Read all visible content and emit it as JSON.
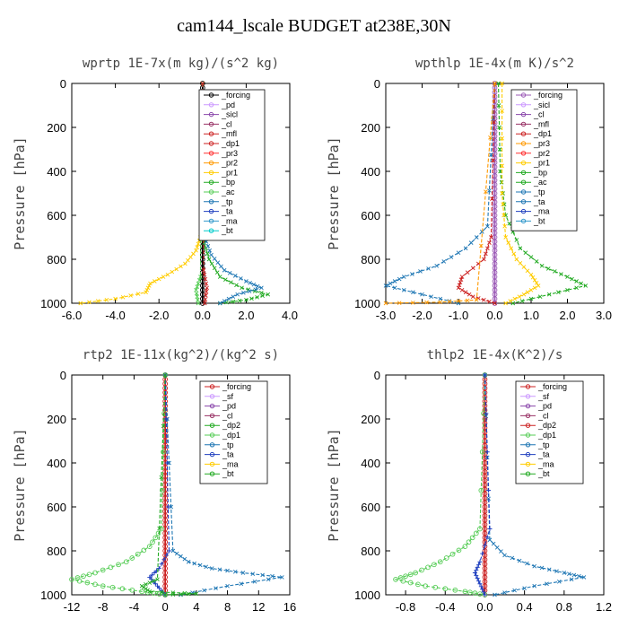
{
  "figure_title": "cam144_lscale  BUDGET at238E,30N",
  "chart_data": [
    {
      "type": "line",
      "title": "wprtp  1E-7x(m kg)/(s^2 kg)",
      "ylabel": "Pressure [hPa]",
      "xlim": [
        -6,
        4
      ],
      "ylim": [
        1000,
        0
      ],
      "xticks": [
        "-6.0",
        "-4.0",
        "-2.0",
        "0.0",
        "2.0",
        "4.0"
      ],
      "yticks": [
        "0",
        "200",
        "400",
        "600",
        "800",
        "1000"
      ],
      "legend": {
        "placement": "top-right-inside",
        "entries": [
          "_forcing",
          "_pd",
          "_sicl",
          "_cl",
          "_mfl",
          "_dp1",
          "_pr3",
          "_pr2",
          "_pr1",
          "_bp",
          "_ac",
          "_tp",
          "_ta",
          "_ma",
          "_bt"
        ]
      },
      "series": [
        {
          "name": "_forcing",
          "color": "#000000",
          "marker": "circle",
          "x": [
            0,
            0,
            0,
            0,
            0,
            0,
            0,
            0,
            0,
            0,
            0
          ],
          "y": [
            0,
            100,
            200,
            300,
            400,
            500,
            600,
            700,
            800,
            900,
            1000
          ]
        },
        {
          "name": "_pr1",
          "color": "#ffcc00",
          "marker": "x",
          "x": [
            0,
            0,
            -0.1,
            -0.3,
            -0.8,
            -1.6,
            -2.4,
            -2.6,
            -4.0,
            -5.6
          ],
          "y": [
            0,
            600,
            700,
            760,
            820,
            870,
            910,
            950,
            980,
            1000
          ]
        },
        {
          "name": "_bp",
          "color": "#22aa22",
          "marker": "x",
          "x": [
            0,
            0,
            0.3,
            0.8,
            1.8,
            3.0,
            2.0,
            0.8
          ],
          "y": [
            0,
            700,
            800,
            880,
            930,
            960,
            985,
            1000
          ]
        },
        {
          "name": "_tp",
          "color": "#1f77b4",
          "marker": "x",
          "x": [
            0,
            0.1,
            0.4,
            1.0,
            2.0,
            2.7,
            1.6,
            0.8
          ],
          "y": [
            0,
            700,
            780,
            850,
            900,
            930,
            960,
            1000
          ]
        },
        {
          "name": "_ac",
          "color": "#55cc55",
          "marker": "x",
          "x": [
            0,
            -0.1,
            -0.3,
            -0.2
          ],
          "y": [
            0,
            880,
            940,
            1000
          ]
        },
        {
          "name": "_dp1",
          "color": "#cc2222",
          "marker": "x",
          "x": [
            0,
            0.05,
            0.2,
            0.1
          ],
          "y": [
            0,
            850,
            930,
            1000
          ]
        }
      ]
    },
    {
      "type": "line",
      "title": "wpthlp  1E-4x(m K)/s^2",
      "ylabel": "Pressure [hPa]",
      "xlim": [
        -3,
        3
      ],
      "ylim": [
        1000,
        0
      ],
      "xticks": [
        "-3.0",
        "-2.0",
        "-1.0",
        "0.0",
        "1.0",
        "2.0",
        "3.0"
      ],
      "yticks": [
        "0",
        "200",
        "400",
        "600",
        "800",
        "1000"
      ],
      "legend": {
        "placement": "top-right-inside",
        "entries": [
          "_forcing",
          "_sicl",
          "_cl",
          "_mfl",
          "_dp1",
          "_pr3",
          "_pr2",
          "_pr1",
          "_bp",
          "_ac",
          "_tp",
          "_ta",
          "_ma",
          "_bt"
        ]
      },
      "series": [
        {
          "name": "_forcing",
          "color": "#9b59b6",
          "marker": "circle",
          "x": [
            0,
            0,
            0,
            0,
            0,
            0,
            0,
            0,
            0,
            0,
            0
          ],
          "y": [
            0,
            100,
            200,
            300,
            400,
            500,
            600,
            700,
            800,
            900,
            1000
          ]
        },
        {
          "name": "_bp",
          "color": "#22aa22",
          "marker": "x",
          "x": [
            0.1,
            0.15,
            0.3,
            0.7,
            1.3,
            2.0,
            2.5,
            1.5,
            0.5
          ],
          "y": [
            0,
            400,
            600,
            750,
            830,
            880,
            920,
            960,
            1000
          ]
        },
        {
          "name": "_pr1",
          "color": "#ffcc00",
          "marker": "x",
          "x": [
            0.2,
            0.2,
            0.3,
            0.6,
            1.0,
            1.2,
            0.8,
            0.3
          ],
          "y": [
            0,
            500,
            700,
            800,
            870,
            920,
            960,
            1000
          ]
        },
        {
          "name": "_tp",
          "color": "#1f77b4",
          "marker": "x",
          "x": [
            0,
            -0.2,
            -0.8,
            -1.6,
            -2.5,
            -3.0,
            -2.0,
            -1.0
          ],
          "y": [
            0,
            650,
            750,
            830,
            880,
            920,
            960,
            1000
          ]
        },
        {
          "name": "_dp1",
          "color": "#cc2222",
          "marker": "x",
          "x": [
            0,
            -0.1,
            -0.3,
            -0.9,
            -1.0,
            -0.6,
            0
          ],
          "y": [
            0,
            700,
            800,
            880,
            930,
            970,
            1000
          ]
        },
        {
          "name": "_pr3",
          "color": "#ff9900",
          "marker": "x",
          "x": [
            0,
            -0.5,
            -1.5,
            -3.0
          ],
          "y": [
            0,
            985,
            995,
            1000
          ]
        }
      ]
    },
    {
      "type": "line",
      "title": "rtp2  1E-11x(kg^2)/(kg^2 s)",
      "ylabel": "Pressure [hPa]",
      "xlim": [
        -12,
        16
      ],
      "ylim": [
        1000,
        0
      ],
      "xticks": [
        "-12",
        "-8",
        "-4",
        "0",
        "4",
        "8",
        "12",
        "16"
      ],
      "yticks": [
        "0",
        "200",
        "400",
        "600",
        "800",
        "1000"
      ],
      "legend": {
        "placement": "top-right-inside",
        "entries": [
          "_forcing",
          "_sf",
          "_pd",
          "_cl",
          "_dp2",
          "_dp1",
          "_tp",
          "_ta",
          "_ma",
          "_bt"
        ]
      },
      "series": [
        {
          "name": "_forcing",
          "color": "#cc2222",
          "marker": "circle",
          "x": [
            0,
            0,
            0,
            0,
            0,
            0,
            0,
            0,
            0,
            0,
            0
          ],
          "y": [
            0,
            100,
            200,
            300,
            400,
            500,
            600,
            700,
            800,
            900,
            1000
          ]
        },
        {
          "name": "_dp1",
          "color": "#55cc55",
          "marker": "circle",
          "x": [
            0,
            -0.5,
            -2,
            -5,
            -9,
            -12,
            -8,
            -3,
            0
          ],
          "y": [
            0,
            700,
            780,
            850,
            900,
            930,
            960,
            985,
            1000
          ]
        },
        {
          "name": "_tp",
          "color": "#1f77b4",
          "marker": "x",
          "x": [
            0,
            1,
            3,
            6,
            10,
            15,
            8,
            2
          ],
          "y": [
            0,
            800,
            850,
            880,
            900,
            920,
            960,
            1000
          ]
        },
        {
          "name": "_ta",
          "color": "#1f3fbf",
          "marker": "plus",
          "x": [
            0,
            0.5,
            -0.8,
            -2,
            -1,
            0
          ],
          "y": [
            0,
            800,
            880,
            920,
            960,
            1000
          ]
        },
        {
          "name": "_dp2",
          "color": "#22aa22",
          "marker": "x",
          "x": [
            0,
            -1,
            -3,
            -2,
            4,
            0
          ],
          "y": [
            0,
            930,
            960,
            985,
            995,
            1000
          ]
        }
      ]
    },
    {
      "type": "line",
      "title": "thlp2  1E-4x(K^2)/s",
      "ylabel": "Pressure [hPa]",
      "xlim": [
        -1,
        1.2
      ],
      "ylim": [
        1000,
        0
      ],
      "xticks": [
        "-0.8",
        "-0.4",
        "0.0",
        "0.4",
        "0.8",
        "1.2"
      ],
      "yticks": [
        "0",
        "200",
        "400",
        "600",
        "800",
        "1000"
      ],
      "legend": {
        "placement": "top-right-inside",
        "entries": [
          "_forcing",
          "_sf",
          "_pd",
          "_cl",
          "_dp2",
          "_dp1",
          "_tp",
          "_ta",
          "_ma",
          "_bt"
        ]
      },
      "series": [
        {
          "name": "_forcing",
          "color": "#cc2222",
          "marker": "circle",
          "x": [
            0,
            0,
            0,
            0,
            0,
            0,
            0,
            0,
            0,
            0,
            0
          ],
          "y": [
            0,
            100,
            200,
            300,
            400,
            500,
            600,
            700,
            800,
            900,
            1000
          ]
        },
        {
          "name": "_dp1",
          "color": "#55cc55",
          "marker": "circle",
          "x": [
            0,
            -0.05,
            -0.2,
            -0.45,
            -0.7,
            -0.9,
            -0.6,
            -0.2,
            0
          ],
          "y": [
            0,
            700,
            780,
            850,
            900,
            930,
            960,
            985,
            1000
          ]
        },
        {
          "name": "_tp",
          "color": "#1f77b4",
          "marker": "x",
          "x": [
            0,
            0.05,
            0.2,
            0.5,
            0.8,
            1.0,
            0.5,
            0.1
          ],
          "y": [
            0,
            750,
            820,
            870,
            900,
            920,
            960,
            1000
          ]
        },
        {
          "name": "_ta",
          "color": "#1f3fbf",
          "marker": "plus",
          "x": [
            0,
            0.05,
            -0.05,
            -0.1,
            -0.05,
            0
          ],
          "y": [
            0,
            700,
            850,
            900,
            950,
            1000
          ]
        }
      ]
    }
  ]
}
